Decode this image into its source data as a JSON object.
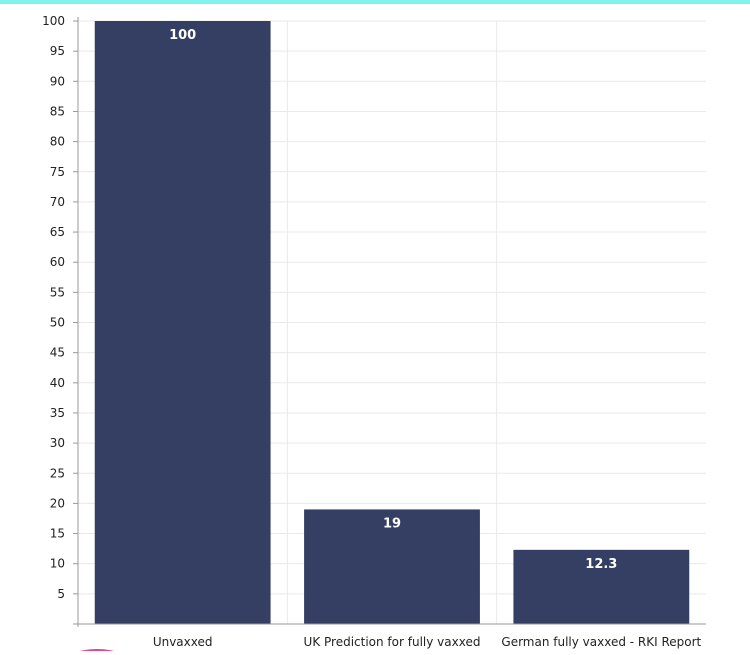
{
  "chart_data": {
    "type": "bar",
    "categories": [
      "Unvaxxed",
      "UK Prediction for fully vaxxed",
      "German fully vaxxed - RKI Report"
    ],
    "series": [
      {
        "values": [
          100,
          19,
          12.3
        ]
      }
    ],
    "data_labels": [
      "100",
      "19",
      "12.3"
    ],
    "title": "",
    "xlabel": "",
    "ylabel": "",
    "ylim": [
      0,
      100
    ],
    "yticks": [
      5,
      10,
      15,
      20,
      25,
      30,
      35,
      40,
      45,
      50,
      55,
      60,
      65,
      70,
      75,
      80,
      85,
      90,
      95,
      100
    ],
    "grid": true,
    "legend": "none",
    "colors": {
      "bar": "#343f63",
      "grid": "#e9e9e9",
      "axis": "#999999",
      "label": "#222222",
      "data_label": "#ffffff",
      "top_strip": "#7ff3ee",
      "corner_shape": "#d9469a"
    }
  }
}
